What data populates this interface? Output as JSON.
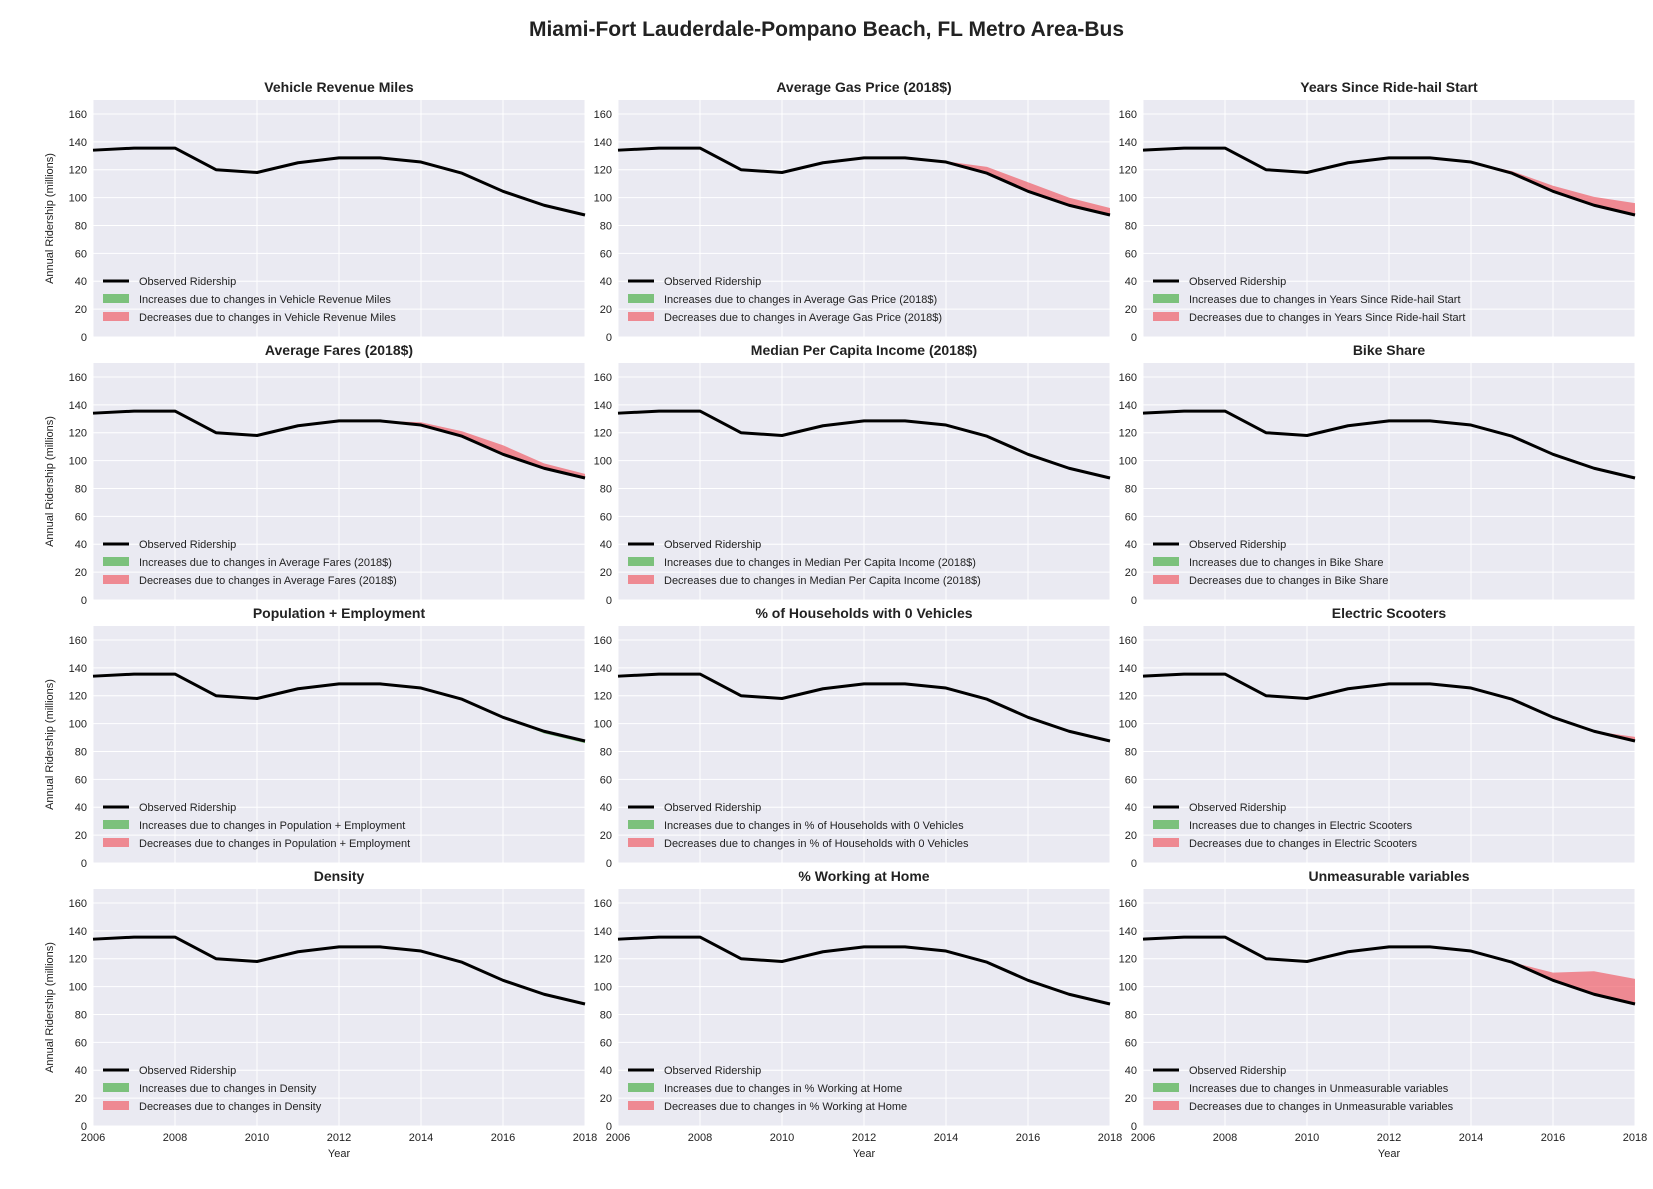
{
  "title": "Miami-Fort Lauderdale-Pompano Beach, FL Metro Area-Bus",
  "colors": {
    "panel_bg": "#eaeaf2",
    "grid": "#ffffff",
    "observed": "#000000",
    "increase": "#4daf4a",
    "decrease": "#f0606a"
  },
  "chart_data": {
    "type": "line",
    "xlabel": "Year",
    "ylabel": "Annual Ridership (millions)",
    "xlim": [
      2006,
      2018
    ],
    "ylim": [
      0,
      170
    ],
    "xticks": [
      2006,
      2008,
      2010,
      2012,
      2014,
      2016,
      2018
    ],
    "yticks": [
      0,
      20,
      40,
      60,
      80,
      100,
      120,
      140,
      160
    ],
    "grid": true,
    "legend_location": "lower-left",
    "years": [
      2006,
      2007,
      2008,
      2009,
      2010,
      2011,
      2012,
      2013,
      2014,
      2015,
      2016,
      2017,
      2018
    ],
    "observed": [
      134,
      135.5,
      135.5,
      120,
      118,
      125,
      128.5,
      128.5,
      125.5,
      117.5,
      104.5,
      94.5,
      87.5
    ],
    "legend_observed": "Observed Ridership",
    "panels": [
      {
        "title": "Vehicle Revenue Miles",
        "legend_increase": "Increases due to changes in Vehicle Revenue Miles",
        "legend_decrease": "Decreases due to changes in Vehicle Revenue Miles",
        "counterfactual": [
          134,
          135.5,
          135.5,
          120,
          118,
          125,
          128.5,
          128.5,
          125.5,
          117.5,
          103.5,
          94,
          87.5
        ]
      },
      {
        "title": "Average Gas Price (2018$)",
        "legend_increase": "Increases due to changes in Average Gas Price (2018$)",
        "legend_decrease": "Decreases due to changes in Average Gas Price (2018$)",
        "counterfactual": [
          134,
          135.5,
          135.5,
          120,
          118,
          125,
          128.5,
          128.5,
          126,
          122,
          111,
          100,
          92.5
        ]
      },
      {
        "title": "Years Since Ride-hail Start",
        "legend_increase": "Increases due to changes in Years Since Ride-hail Start",
        "legend_decrease": "Decreases due to changes in Years Since Ride-hail Start",
        "counterfactual": [
          134,
          135.5,
          135.5,
          120,
          118,
          125,
          128.5,
          128.5,
          125.5,
          119,
          108.5,
          100.5,
          96
        ]
      },
      {
        "title": "Average Fares (2018$)",
        "legend_increase": "Increases due to changes in Average Fares (2018$)",
        "legend_decrease": "Decreases due to changes in Average Fares (2018$)",
        "counterfactual": [
          134,
          135.5,
          135.5,
          120,
          118,
          125,
          128.5,
          128.5,
          127.5,
          121,
          111,
          98,
          90.5
        ]
      },
      {
        "title": "Median Per Capita Income (2018$)",
        "legend_increase": "Increases due to changes in Median Per Capita Income (2018$)",
        "legend_decrease": "Decreases due to changes in Median Per Capita Income (2018$)",
        "counterfactual": [
          134,
          135.5,
          135.5,
          120,
          118,
          125,
          128.5,
          128.5,
          125.5,
          117.5,
          104.5,
          94.5,
          87.5
        ]
      },
      {
        "title": "Bike Share",
        "legend_increase": "Increases due to changes in Bike Share",
        "legend_decrease": "Decreases due to changes in Bike Share",
        "counterfactual": [
          134,
          135.5,
          135.5,
          120,
          118,
          125,
          128.5,
          128.5,
          125.5,
          117.5,
          104.5,
          94.5,
          87.5
        ]
      },
      {
        "title": "Population + Employment",
        "legend_increase": "Increases due to changes in Population + Employment",
        "legend_decrease": "Decreases due to changes in Population + Employment",
        "counterfactual": [
          134,
          135.5,
          135.5,
          120,
          118,
          125,
          128.5,
          128.5,
          125.5,
          117.5,
          104.5,
          93,
          86
        ]
      },
      {
        "title": "% of Households with 0 Vehicles",
        "legend_increase": "Increases due to changes in % of Households with 0 Vehicles",
        "legend_decrease": "Decreases due to changes in % of Households with 0 Vehicles",
        "counterfactual": [
          134,
          135.5,
          135.5,
          120,
          118,
          125,
          128.5,
          128.5,
          125.5,
          117.5,
          104.5,
          94.5,
          87.5
        ]
      },
      {
        "title": "Electric Scooters",
        "legend_increase": "Increases due to changes in Electric Scooters",
        "legend_decrease": "Decreases due to changes in Electric Scooters",
        "counterfactual": [
          134,
          135.5,
          135.5,
          120,
          118,
          125,
          128.5,
          128.5,
          125.5,
          117.5,
          104.5,
          94.5,
          90.5
        ]
      },
      {
        "title": "Density",
        "legend_increase": "Increases due to changes in Density",
        "legend_decrease": "Decreases due to changes in Density",
        "counterfactual": [
          134,
          135.5,
          135.5,
          120,
          118,
          125,
          128.5,
          128.5,
          125.5,
          117.5,
          104.5,
          94.5,
          87.5
        ]
      },
      {
        "title": "% Working at Home",
        "legend_increase": "Increases due to changes in % Working at Home",
        "legend_decrease": "Decreases due to changes in % Working at Home",
        "counterfactual": [
          134,
          135.5,
          135.5,
          120,
          118,
          125,
          128.5,
          128.5,
          125.5,
          117.5,
          104.5,
          94.5,
          87.5
        ]
      },
      {
        "title": "Unmeasurable variables",
        "legend_increase": "Increases due to changes in Unmeasurable variables",
        "legend_decrease": "Decreases due to changes in Unmeasurable variables",
        "counterfactual": [
          134,
          135.5,
          135.5,
          120,
          118,
          125,
          128.5,
          128.5,
          125.5,
          117.5,
          110,
          111,
          105.5
        ]
      }
    ]
  }
}
